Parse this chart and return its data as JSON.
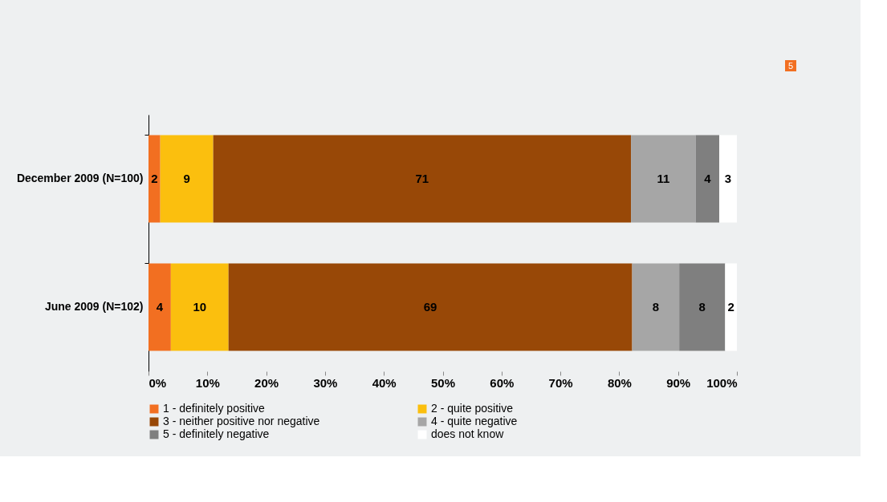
{
  "chart_data": {
    "type": "bar",
    "orientation": "horizontal",
    "stacked": true,
    "categories": [
      "December 2009 (N=100)",
      "June 2009 (N=102)"
    ],
    "series": [
      {
        "name": "1 - definitely positive",
        "color": "#f26f21",
        "values": [
          2,
          3.8
        ],
        "value_labels": [
          "2",
          "4"
        ]
      },
      {
        "name": "2 - quite positive",
        "color": "#fbbf0e",
        "values": [
          9,
          9.8
        ],
        "value_labels": [
          "9",
          "10"
        ]
      },
      {
        "name": "3 - neither positive nor negative",
        "color": "#984807",
        "values": [
          71,
          68.6
        ],
        "value_labels": [
          "71",
          "69"
        ]
      },
      {
        "name": "4 - quite negative",
        "color": "#a6a6a6",
        "values": [
          11,
          8.0
        ],
        "value_labels": [
          "11",
          "8"
        ]
      },
      {
        "name": "5 - definitely negative",
        "color": "#7f7f7f",
        "values": [
          4,
          7.8
        ],
        "value_labels": [
          "4",
          "8"
        ]
      },
      {
        "name": "does not know",
        "color": "#ffffff",
        "values": [
          3,
          2.0
        ],
        "value_labels": [
          "3",
          "2"
        ]
      }
    ],
    "xlim": [
      0,
      100
    ],
    "xticks": [
      {
        "value": 0,
        "label": "0%"
      },
      {
        "value": 10,
        "label": "10%"
      },
      {
        "value": 20,
        "label": "20%"
      },
      {
        "value": 30,
        "label": "30%"
      },
      {
        "value": 40,
        "label": "40%"
      },
      {
        "value": 50,
        "label": "50%"
      },
      {
        "value": 60,
        "label": "60%"
      },
      {
        "value": 70,
        "label": "70%"
      },
      {
        "value": 80,
        "label": "80%"
      },
      {
        "value": 90,
        "label": "90%"
      },
      {
        "value": 100,
        "label": "100%"
      }
    ],
    "grid": false,
    "legend": "bottom",
    "annotations": [
      "5"
    ]
  }
}
